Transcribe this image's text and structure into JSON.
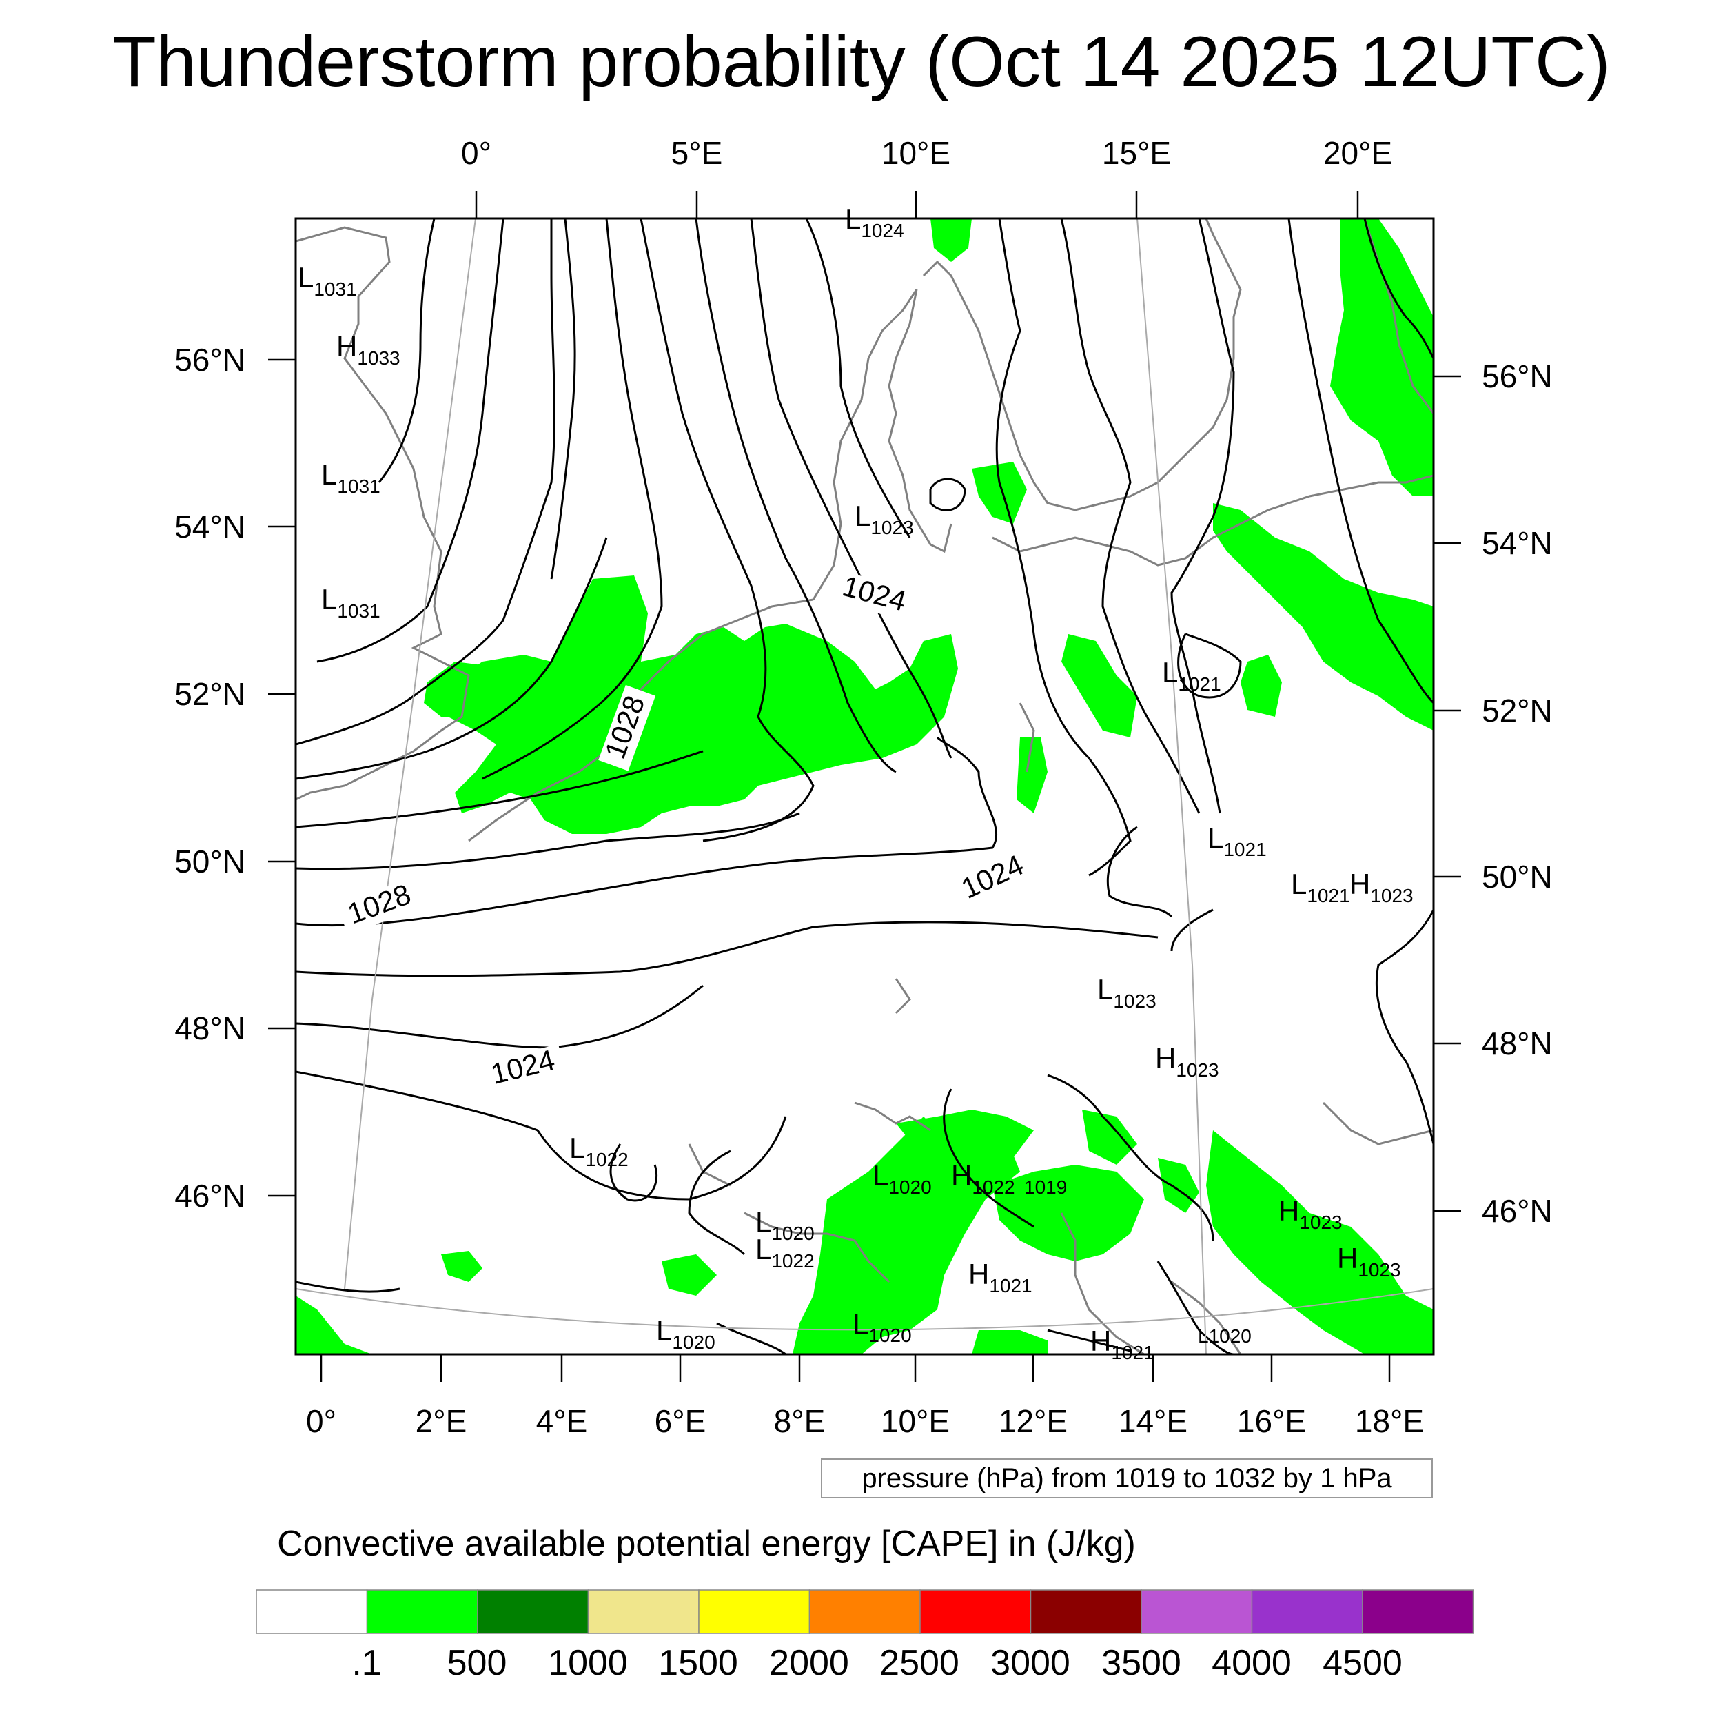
{
  "title": "Thunderstorm probability (Oct 14 2025 12UTC)",
  "top_axis_labels": [
    "0°",
    "5°E",
    "10°E",
    "15°E",
    "20°E"
  ],
  "bottom_axis_labels": [
    "0°",
    "2°E",
    "4°E",
    "6°E",
    "8°E",
    "10°E",
    "12°E",
    "14°E",
    "16°E",
    "18°E"
  ],
  "left_axis_labels": [
    "56°N",
    "54°N",
    "52°N",
    "50°N",
    "48°N",
    "46°N"
  ],
  "right_axis_labels": [
    "56°N",
    "54°N",
    "52°N",
    "50°N",
    "48°N",
    "46°N"
  ],
  "contour_labels": [
    "1028",
    "1028",
    "1024",
    "1024",
    "1024"
  ],
  "pressure_centers": [
    {
      "type": "L",
      "value": "1031"
    },
    {
      "type": "H",
      "value": "1033"
    },
    {
      "type": "L",
      "value": "1031"
    },
    {
      "type": "L",
      "value": "1031"
    },
    {
      "type": "L",
      "value": "1024"
    },
    {
      "type": "L",
      "value": "1023"
    },
    {
      "type": "L",
      "value": "1021"
    },
    {
      "type": "L",
      "value": "1021"
    },
    {
      "type": "L",
      "value": "1021"
    },
    {
      "type": "H",
      "value": "1023"
    },
    {
      "type": "L",
      "value": "1023"
    },
    {
      "type": "H",
      "value": "1023"
    },
    {
      "type": "L",
      "value": "1022"
    },
    {
      "type": "L",
      "value": "1020"
    },
    {
      "type": "H",
      "value": "1022"
    },
    {
      "type": "",
      "value": "1019"
    },
    {
      "type": "L",
      "value": "1020"
    },
    {
      "type": "L",
      "value": "1022"
    },
    {
      "type": "H",
      "value": "1021"
    },
    {
      "type": "H",
      "value": "1023"
    },
    {
      "type": "H",
      "value": "1023"
    },
    {
      "type": "L",
      "value": "1020"
    },
    {
      "type": "L",
      "value": "1020"
    },
    {
      "type": "H",
      "value": "1021"
    },
    {
      "type": "L",
      "value": "1020"
    }
  ],
  "contour_note": "pressure (hPa) from 1019 to 1032 by 1 hPa",
  "colorbar": {
    "title": "Convective available potential energy [CAPE] in (J/kg)",
    "colors": [
      "#ffffff",
      "#00ff00",
      "#008000",
      "#f0e68c",
      "#ffff00",
      "#ff8000",
      "#ff0000",
      "#8b0000",
      "#ba55d3",
      "#9932cc",
      "#8b008b"
    ],
    "labels": [
      ".1",
      "500",
      "1000",
      "1500",
      "2000",
      "2500",
      "3000",
      "3500",
      "4000",
      "4500"
    ]
  },
  "colors": {
    "cape_green": "#00ff00",
    "coast": "#808080",
    "isobar": "#000000",
    "graticule": "#aaaaaa"
  }
}
